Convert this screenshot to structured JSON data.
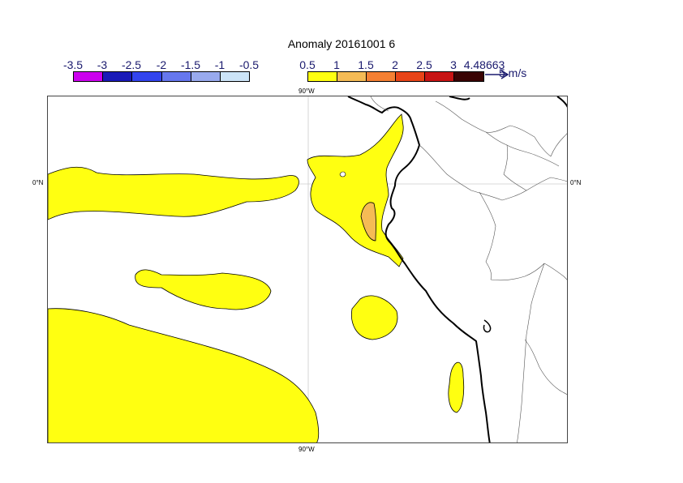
{
  "title": "Anomaly 20161001 6",
  "colorbar_negative": {
    "labels": [
      "-3.5",
      "-3",
      "-2.5",
      "-2",
      "-1.5",
      "-1",
      "-0.5"
    ],
    "colors": [
      "#cc00ee",
      "#1a1ab8",
      "#3344ee",
      "#6677ee",
      "#99aaee",
      "#cce4f7"
    ]
  },
  "colorbar_positive": {
    "labels": [
      "0.5",
      "1",
      "1.5",
      "2",
      "2.5",
      "3",
      "4.48663"
    ],
    "colors": [
      "#ffff11",
      "#f5bb55",
      "#f58033",
      "#e84418",
      "#c81414",
      "#3a0404"
    ]
  },
  "vector_unit": "5 m/s",
  "axis_labels": {
    "top_lon": "90°W",
    "bottom_lon": "90°W",
    "left_lat": "0°N",
    "right_lat": "0°N"
  },
  "colors": {
    "anomaly_low": "#ffff11",
    "anomaly_mid": "#f5bb55",
    "coast": "#000000",
    "border": "#444444",
    "grid": "#cccccc"
  }
}
